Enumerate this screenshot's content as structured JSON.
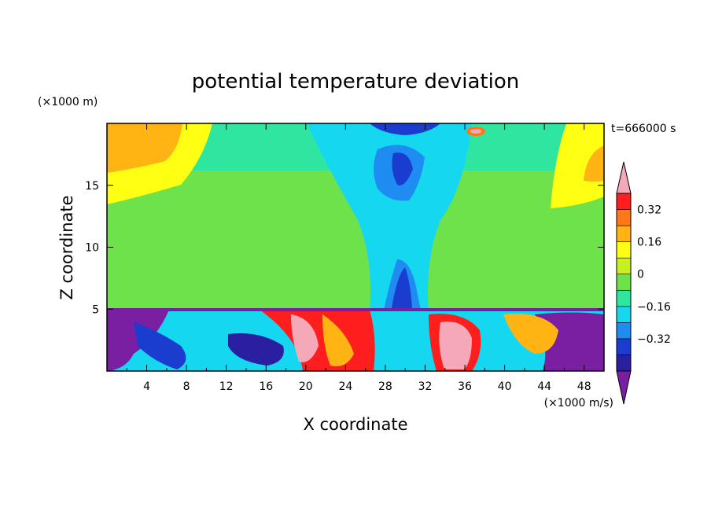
{
  "chart_data": {
    "type": "heatmap",
    "title": "potential temperature deviation",
    "xlabel": "X coordinate",
    "ylabel": "Z coordinate",
    "x_unit": "(×1000 m/s)",
    "y_unit": "(×1000 m)",
    "time_label": "t=666000 s",
    "xlim": [
      0,
      50
    ],
    "ylim": [
      0,
      20
    ],
    "x_ticks": [
      4,
      8,
      12,
      16,
      20,
      24,
      28,
      32,
      36,
      40,
      44,
      48
    ],
    "y_ticks": [
      5,
      10,
      15
    ],
    "colorbar": {
      "levels": [
        -0.48,
        -0.4,
        -0.32,
        -0.24,
        -0.16,
        -0.08,
        0,
        0.08,
        0.16,
        0.24,
        0.32,
        0.4
      ],
      "labels": [
        "0.32",
        "0.16",
        "0",
        "−0.16",
        "−0.32"
      ],
      "label_values": [
        0.32,
        0.16,
        0,
        -0.16,
        -0.32
      ],
      "colors": [
        "#7a1fa2",
        "#2a1fa0",
        "#1a3ccf",
        "#1e8cf0",
        "#16d7f0",
        "#2ee6a0",
        "#6de24a",
        "#c8f01e",
        "#ffff14",
        "#ffb414",
        "#ff7814",
        "#ff1e1e",
        "#f5a9b8"
      ],
      "extend": "both"
    }
  }
}
